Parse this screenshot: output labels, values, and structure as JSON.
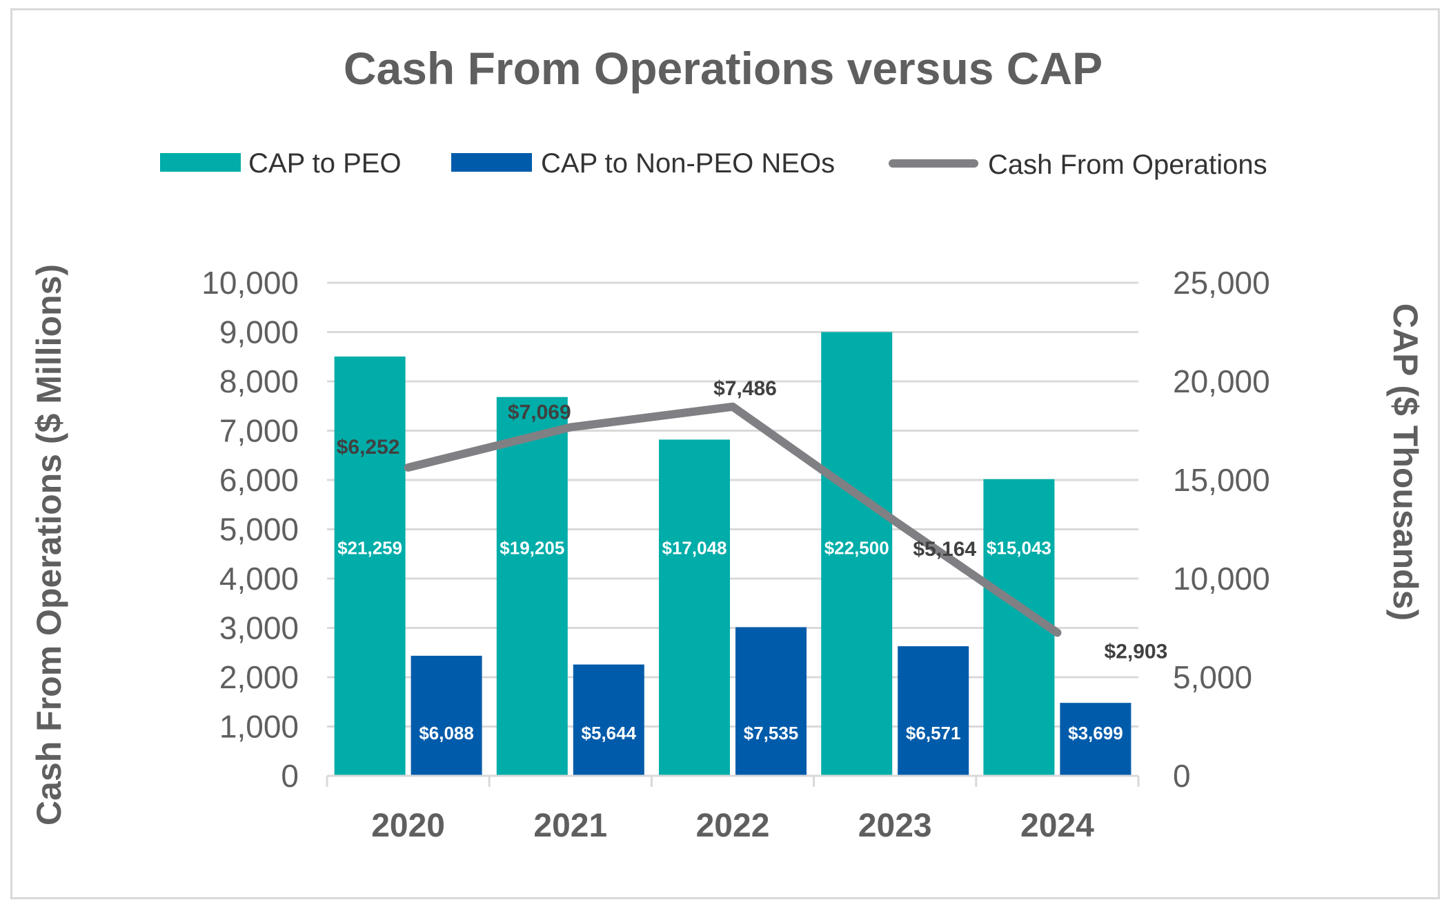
{
  "chart_data": {
    "type": "bar",
    "title": "Cash From Operations versus CAP",
    "categories": [
      "2020",
      "2021",
      "2022",
      "2023",
      "2024"
    ],
    "ylabel_left": "Cash From Operations ($ Millions)",
    "ylabel_right": "CAP ($ Thousands)",
    "ylim_left": [
      0,
      10000
    ],
    "ylim_right": [
      0,
      25000
    ],
    "yticks_left": [
      "0",
      "1,000",
      "2,000",
      "3,000",
      "4,000",
      "5,000",
      "6,000",
      "7,000",
      "8,000",
      "9,000",
      "10,000"
    ],
    "yticks_right": [
      "0",
      "5,000",
      "10,000",
      "15,000",
      "20,000",
      "25,000"
    ],
    "grid": true,
    "legend_position": "top",
    "series": [
      {
        "name": "CAP to PEO",
        "kind": "bar",
        "axis": "right",
        "color": "#00ada9",
        "values": [
          21259,
          19205,
          17048,
          22500,
          15043
        ],
        "labels": [
          "$21,259",
          "$19,205",
          "$17,048",
          "$22,500",
          "$15,043"
        ]
      },
      {
        "name": "CAP to Non-PEO NEOs",
        "kind": "bar",
        "axis": "right",
        "color": "#005baa",
        "values": [
          6088,
          5644,
          7535,
          6571,
          3699
        ],
        "labels": [
          "$6,088",
          "$5,644",
          "$7,535",
          "$6,571",
          "$3,699"
        ]
      },
      {
        "name": "Cash From Operations",
        "kind": "line",
        "axis": "left",
        "color": "#808084",
        "values": [
          6252,
          7069,
          7486,
          5164,
          2903
        ],
        "labels": [
          "$6,252",
          "$7,069",
          "$7,486",
          "$5,164",
          "$2,903"
        ]
      }
    ]
  }
}
